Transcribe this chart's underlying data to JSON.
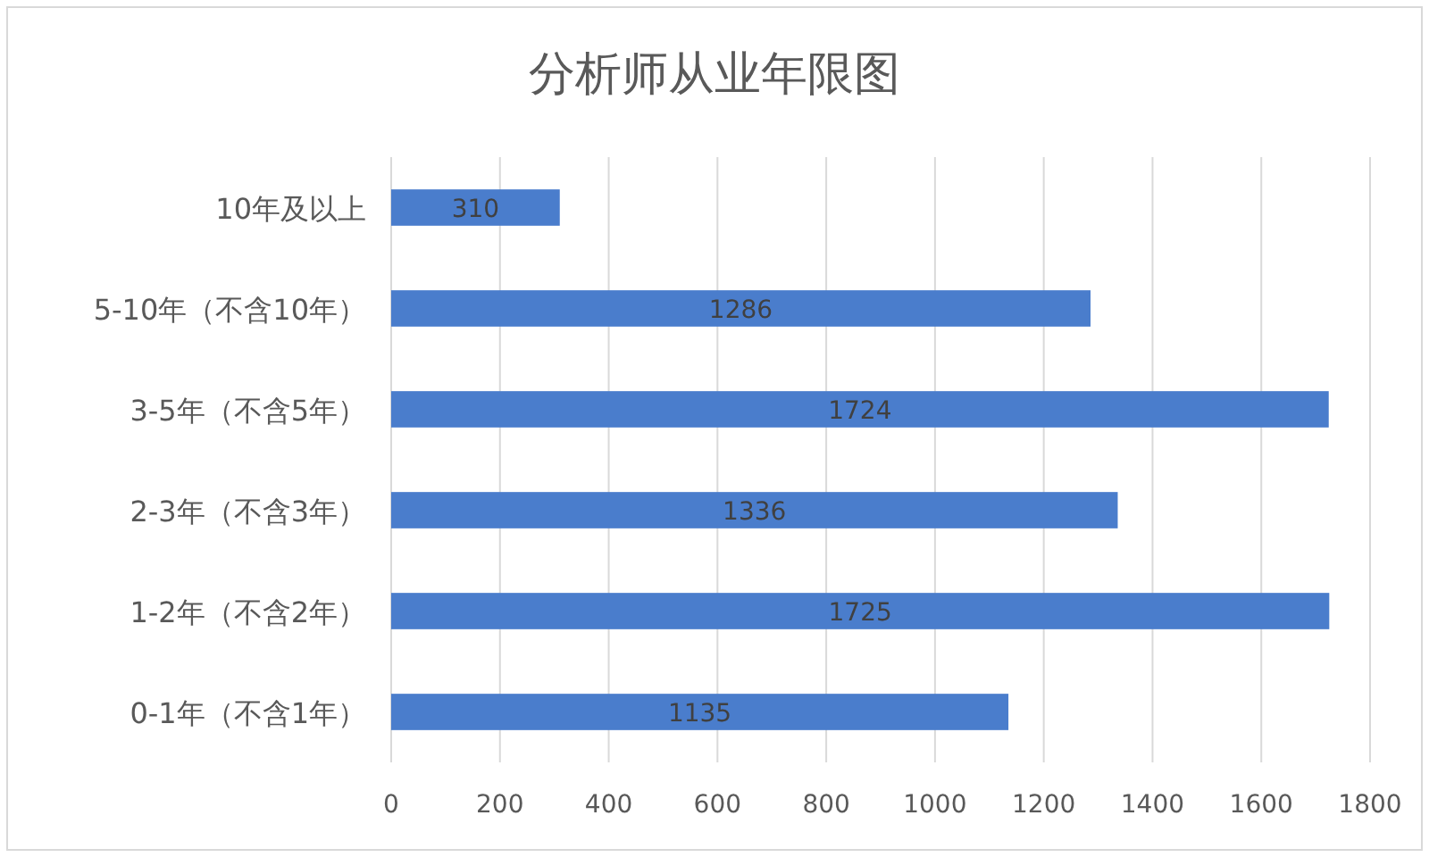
{
  "chart_data": {
    "type": "bar",
    "orientation": "horizontal",
    "title": "分析师从业年限图",
    "categories": [
      "10年及以上",
      "5-10年（不含10年）",
      "3-5年（不含5年）",
      "2-3年（不含3年）",
      "1-2年（不含2年）",
      "0-1年（不含1年）"
    ],
    "values": [
      310,
      1286,
      1724,
      1336,
      1725,
      1135
    ],
    "color": "#4a7dcc",
    "xlim": [
      0,
      1800
    ],
    "xticks": [
      0,
      200,
      400,
      600,
      800,
      1000,
      1200,
      1400,
      1600,
      1800
    ],
    "grid": "x",
    "data_labels": true
  }
}
